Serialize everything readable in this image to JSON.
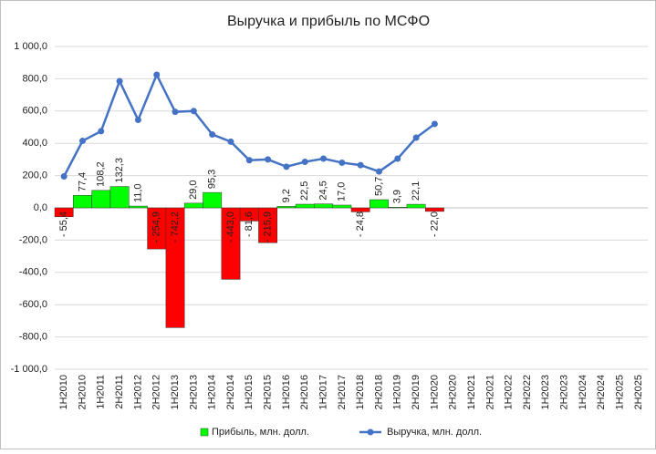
{
  "chart_data": {
    "type": "bar-line",
    "title": "Выручка и прибыль по МСФО",
    "categories": [
      "1H2010",
      "2H2010",
      "1H2011",
      "2H2011",
      "1H2012",
      "2H2012",
      "1H2013",
      "2H2013",
      "1H2014",
      "2H2014",
      "1H2015",
      "2H2015",
      "1H2016",
      "2H2016",
      "1H2017",
      "2H2017",
      "1H2018",
      "2H2018",
      "1H2019",
      "2H2019",
      "1H2020",
      "2H2020",
      "1H2021",
      "2H2021",
      "1H2022",
      "2H2022",
      "1H2023",
      "2H2023",
      "1H2024",
      "2H2024",
      "1H2025",
      "2H2025"
    ],
    "series": [
      {
        "name": "Прибыль, млн. долл.",
        "type": "bar",
        "color": "#00ff00",
        "negative_color": "#ff0000",
        "values": [
          -55.4,
          77.4,
          108.2,
          132.3,
          11.0,
          -254.9,
          -742.2,
          29.0,
          95.3,
          -443.0,
          -81.6,
          -215.9,
          9.2,
          22.5,
          24.5,
          17.0,
          -24.8,
          50.7,
          3.9,
          22.1,
          -22.0,
          null,
          null,
          null,
          null,
          null,
          null,
          null,
          null,
          null,
          null,
          null
        ],
        "value_labels": [
          "- 55,4",
          "77,4",
          "108,2",
          "132,3",
          "11,0",
          "- 254,9",
          "- 742,2",
          "29,0",
          "95,3",
          "- 443,0",
          "- 81,6",
          "- 215,9",
          "9,2",
          "22,5",
          "24,5",
          "17,0",
          "- 24,8",
          "50,7",
          "3,9",
          "22,1",
          "- 22,0",
          null,
          null,
          null,
          null,
          null,
          null,
          null,
          null,
          null,
          null,
          null
        ]
      },
      {
        "name": "Выручка, млн. долл.",
        "type": "line",
        "color": "#4472c4",
        "values": [
          195,
          415,
          475,
          785,
          545,
          825,
          595,
          600,
          455,
          410,
          295,
          300,
          255,
          285,
          305,
          280,
          265,
          225,
          305,
          435,
          520,
          null,
          null,
          null,
          null,
          null,
          null,
          null,
          null,
          null,
          null,
          null
        ]
      }
    ],
    "ylim": [
      -1000,
      1000
    ],
    "yticks": [
      {
        "value": -1000,
        "label": "-1 000,0"
      },
      {
        "value": -800,
        "label": "-800,0"
      },
      {
        "value": -600,
        "label": "-600,0"
      },
      {
        "value": -400,
        "label": "-400,0"
      },
      {
        "value": -200,
        "label": "-200,0"
      },
      {
        "value": 0,
        "label": "0,0"
      },
      {
        "value": 200,
        "label": "200,0"
      },
      {
        "value": 400,
        "label": "400,0"
      },
      {
        "value": 600,
        "label": "600,0"
      },
      {
        "value": 800,
        "label": "800,0"
      },
      {
        "value": 1000,
        "label": "1 000,0"
      }
    ],
    "grid": true,
    "legend": "bottom"
  }
}
